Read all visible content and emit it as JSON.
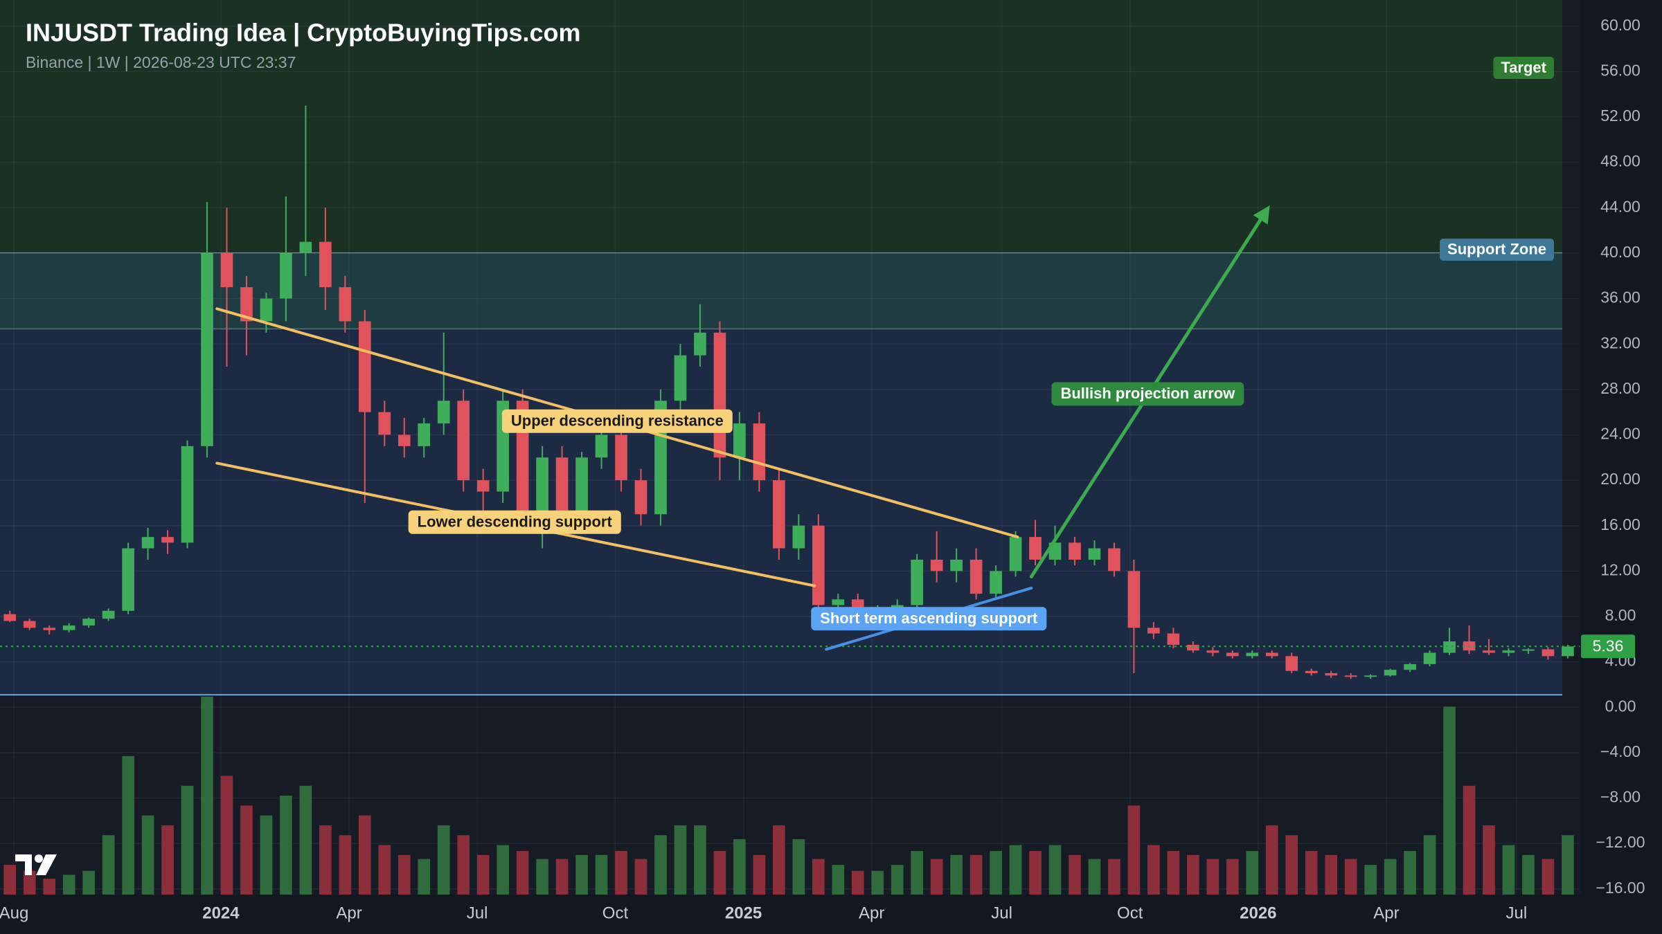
{
  "chart_data": {
    "type": "candlestick",
    "title": "INJUSDT Trading Idea | CryptoBuyingTips.com",
    "subtitle": "Binance | 1W | 2026-08-23 UTC 23:37",
    "up_color": "#3fae5a",
    "down_color": "#e0535d",
    "volume_up_color": "#2f6b3c",
    "volume_down_color": "#8c2f3b",
    "open": [
      8.2,
      7.6,
      7.0,
      6.8,
      7.2,
      7.8,
      8.5,
      14,
      15,
      14.5,
      23,
      40,
      37,
      34,
      36,
      40,
      41,
      37,
      34,
      26,
      24,
      23,
      25,
      27,
      20,
      19,
      27,
      17,
      22,
      17,
      22,
      24,
      20,
      17,
      27,
      31,
      33,
      22,
      25,
      20,
      14,
      16,
      9,
      9.5,
      8,
      8.5,
      9,
      13,
      12,
      13,
      10,
      12,
      15,
      13,
      14.5,
      13,
      14,
      12,
      7,
      6.5,
      5.5,
      5.0,
      4.8,
      4.5,
      4.8,
      4.5,
      3.2,
      3.0,
      2.8,
      2.7,
      2.8,
      3.3,
      3.8,
      4.8,
      5.8,
      5.0,
      4.8,
      5.0,
      5.1,
      4.5
    ],
    "high": [
      8.5,
      7.8,
      7.2,
      7.4,
      7.9,
      8.7,
      14.5,
      15.8,
      15.6,
      23.5,
      44.5,
      44,
      38,
      36.5,
      45,
      53,
      44,
      38,
      35,
      27,
      25.5,
      25.5,
      33,
      28,
      21,
      28,
      28,
      23,
      23,
      22.5,
      25,
      25,
      21,
      28,
      32,
      35.5,
      34,
      26,
      26,
      21,
      17,
      17,
      10,
      10,
      9,
      9.5,
      13.5,
      15.5,
      14,
      14,
      12.5,
      15.5,
      16.5,
      16,
      15,
      14.7,
      14.5,
      13,
      7.5,
      7,
      5.8,
      5.3,
      5,
      5,
      5,
      4.8,
      3.4,
      3.2,
      3,
      2.9,
      3.4,
      3.9,
      5,
      7,
      7.2,
      6,
      5.2,
      5.2,
      5.3,
      5.5
    ],
    "low": [
      7.5,
      6.8,
      6.4,
      6.6,
      7,
      7.6,
      8.2,
      13,
      13.5,
      14,
      22,
      30,
      31,
      33,
      34,
      38,
      35,
      33,
      18,
      23,
      22,
      22,
      24,
      19,
      17,
      18,
      16,
      14,
      16,
      16,
      21,
      19,
      16,
      16,
      26,
      30,
      20,
      20,
      19,
      13,
      13,
      8.5,
      8.5,
      7,
      7.5,
      8,
      8.5,
      11,
      11,
      9.5,
      9.5,
      11.5,
      12.5,
      12.5,
      12.5,
      12.5,
      11.5,
      3,
      6,
      5.2,
      4.8,
      4.5,
      4.3,
      4.3,
      4.3,
      3,
      2.8,
      2.6,
      2.5,
      2.5,
      2.7,
      3.1,
      3.6,
      4.6,
      4.7,
      4.6,
      4.5,
      4.7,
      4.2,
      4.3
    ],
    "close": [
      7.6,
      7.0,
      6.8,
      7.2,
      7.8,
      8.5,
      14,
      15,
      14.5,
      23,
      40,
      37,
      34,
      36,
      40,
      41,
      37,
      34,
      26,
      24,
      23,
      25,
      27,
      20,
      19,
      27,
      17,
      22,
      17,
      22,
      24,
      20,
      17,
      27,
      31,
      33,
      22,
      25,
      20,
      14,
      16,
      9,
      9.5,
      8,
      8.5,
      9,
      13,
      12,
      13,
      10,
      12,
      15,
      13,
      14.5,
      13,
      14,
      12,
      7,
      6.5,
      5.5,
      5.0,
      4.8,
      4.5,
      4.8,
      4.5,
      3.2,
      3.0,
      2.8,
      2.7,
      2.8,
      3.3,
      3.8,
      4.8,
      5.8,
      5.0,
      4.8,
      5.0,
      5.1,
      4.5,
      5.36
    ],
    "volume": [
      15,
      12,
      8,
      10,
      12,
      30,
      70,
      40,
      35,
      55,
      100,
      60,
      45,
      40,
      50,
      55,
      35,
      30,
      40,
      25,
      20,
      18,
      35,
      30,
      20,
      25,
      22,
      18,
      18,
      20,
      20,
      22,
      18,
      30,
      35,
      35,
      22,
      28,
      20,
      35,
      28,
      18,
      15,
      12,
      12,
      15,
      22,
      18,
      20,
      20,
      22,
      25,
      22,
      25,
      20,
      18,
      18,
      45,
      25,
      22,
      20,
      18,
      18,
      22,
      35,
      30,
      22,
      20,
      18,
      15,
      18,
      22,
      30,
      95,
      55,
      35,
      25,
      20,
      18,
      30
    ],
    "volume_lim": [
      0,
      100
    ],
    "xlim": [
      -0.5,
      79.6
    ],
    "xticks": [
      {
        "value": 0.2,
        "label": "Aug"
      },
      {
        "value": 10.7,
        "label": "2024"
      },
      {
        "value": 17.2,
        "label": "Apr"
      },
      {
        "value": 23.7,
        "label": "Jul"
      },
      {
        "value": 30.7,
        "label": "Oct"
      },
      {
        "value": 37.2,
        "label": "2025"
      },
      {
        "value": 43.7,
        "label": "Apr"
      },
      {
        "value": 50.3,
        "label": "Jul"
      },
      {
        "value": 56.8,
        "label": "Oct"
      },
      {
        "value": 63.3,
        "label": "2026"
      },
      {
        "value": 69.8,
        "label": "Apr"
      },
      {
        "value": 76.4,
        "label": "Jul"
      }
    ],
    "ylim": [
      -16.5,
      62.3
    ],
    "yticks": [
      {
        "value": 60,
        "label": "60.00"
      },
      {
        "value": 56,
        "label": "56.00"
      },
      {
        "value": 52,
        "label": "52.00"
      },
      {
        "value": 48,
        "label": "48.00"
      },
      {
        "value": 44,
        "label": "44.00"
      },
      {
        "value": 40,
        "label": "40.00"
      },
      {
        "value": 36,
        "label": "36.00"
      },
      {
        "value": 32,
        "label": "32.00"
      },
      {
        "value": 28,
        "label": "28.00"
      },
      {
        "value": 24,
        "label": "24.00"
      },
      {
        "value": 20,
        "label": "20.00"
      },
      {
        "value": 16,
        "label": "16.00"
      },
      {
        "value": 12,
        "label": "12.00"
      },
      {
        "value": 8,
        "label": "8.00"
      },
      {
        "value": 4,
        "label": "4.00"
      },
      {
        "value": 0,
        "label": "0.00"
      },
      {
        "value": -4,
        "label": "−4.00"
      },
      {
        "value": -8,
        "label": "−8.00"
      },
      {
        "value": -12,
        "label": "−12.00"
      },
      {
        "value": -16,
        "label": "−16.00"
      }
    ],
    "grid": true,
    "last_price": 5.36,
    "last_price_color": "#2ea043",
    "zones": [
      {
        "name": "Target",
        "low": 40,
        "color": "#1a3124",
        "border": "#5b9bd5",
        "label_color": "#2e7d32"
      },
      {
        "name": "Support Zone",
        "low": 33.3,
        "high": 40,
        "color": "#1f3c42",
        "border": "#4caf50",
        "label_color": "#3e7898"
      },
      {
        "low": 1.1,
        "high": 33.3,
        "color": "#1c2a44",
        "border": "#6aa8e0"
      }
    ],
    "annotations": [
      {
        "text": "Upper descending resistance",
        "color": "#f2c063",
        "label_color": "#f7d27a",
        "text_color": "#1a1a1a",
        "x": [
          10.5,
          51.1
        ],
        "y": [
          35.1,
          15.0
        ],
        "label_at": [
          30.8,
          25.2
        ]
      },
      {
        "text": "Lower descending support",
        "color": "#f2c063",
        "label_color": "#f7d27a",
        "text_color": "#1a1a1a",
        "x": [
          10.5,
          40.8
        ],
        "y": [
          21.5,
          10.7
        ],
        "label_at": [
          25.6,
          16.3
        ]
      },
      {
        "text": "Short term ascending support",
        "color": "#4a90e2",
        "label_color": "#5ba3f5",
        "text_color": "#ffffff",
        "x": [
          41.4,
          51.8
        ],
        "y": [
          5.1,
          10.5
        ],
        "label_at": [
          46.6,
          7.8
        ]
      },
      {
        "text": "Bullish projection arrow",
        "color": "#3daa4f",
        "label_color": "#2e8b3e",
        "text_color": "#ffffff",
        "arrow": true,
        "x": [
          51.8,
          63.7
        ],
        "y": [
          11.5,
          43.7
        ],
        "label_at": [
          57.7,
          27.6
        ]
      }
    ]
  }
}
